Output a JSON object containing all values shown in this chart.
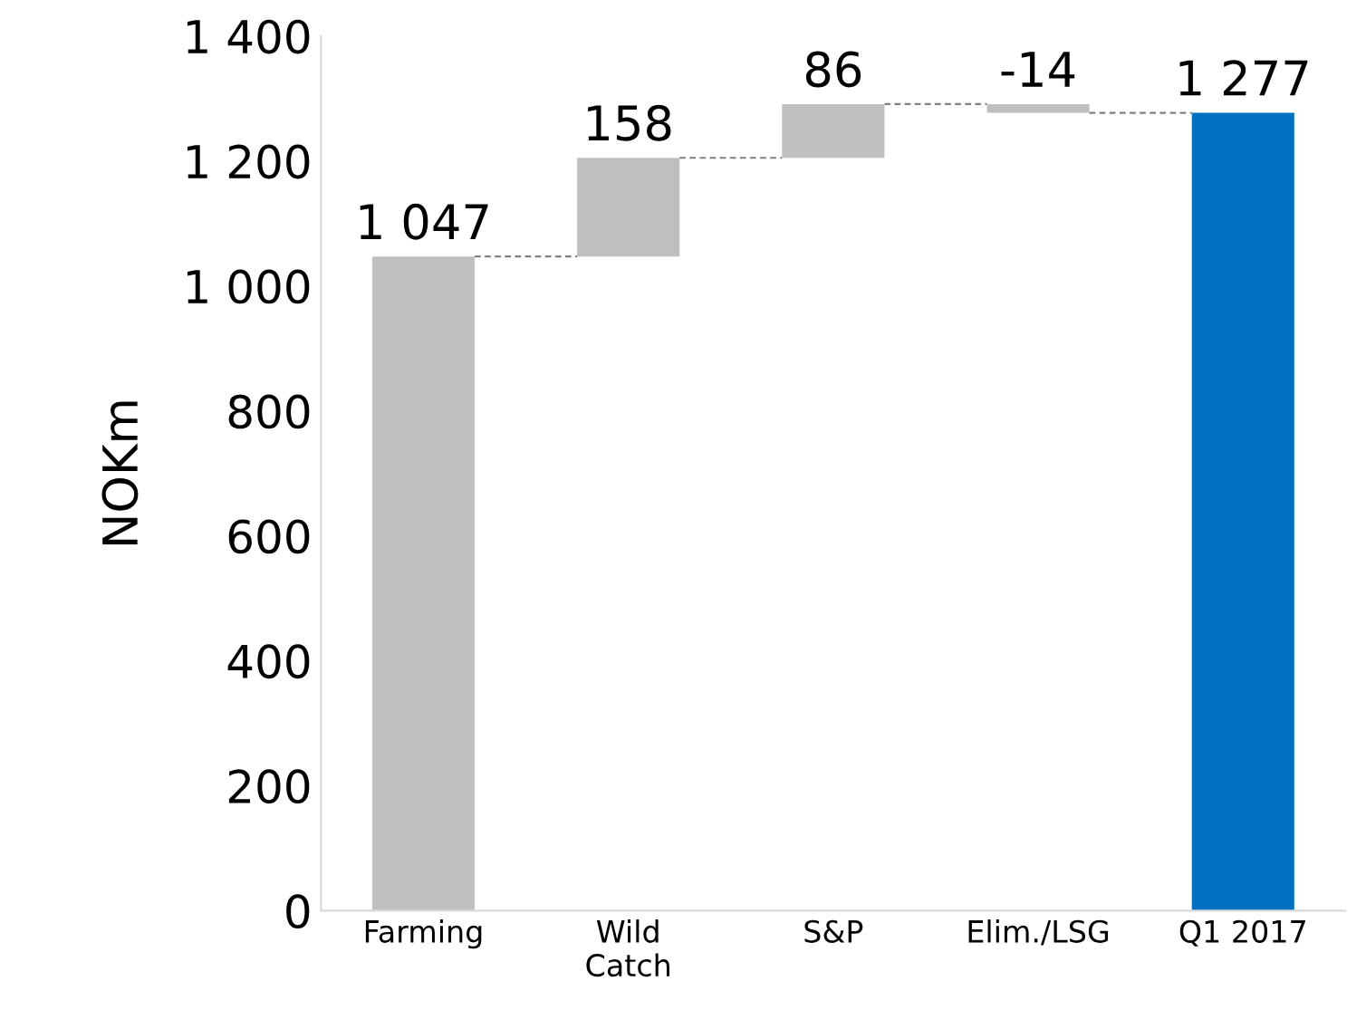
{
  "chart_data": {
    "type": "bar",
    "ylabel": "NOKm",
    "categories": [
      "Farming",
      "Wild\nCatch",
      "S&P",
      "Elim./LSG",
      "Q1 2017"
    ],
    "values": [
      1047,
      158,
      86,
      -14,
      1277
    ],
    "base": [
      0,
      1047,
      1205,
      1291,
      0
    ],
    "colors": [
      "#bfbfbf",
      "#bfbfbf",
      "#bfbfbf",
      "#bfbfbf",
      "#0070c0"
    ],
    "value_labels": [
      "1 047",
      "158",
      "86",
      "-14",
      "1 277"
    ],
    "ylim": [
      0,
      1400
    ],
    "yticks": [
      0,
      200,
      400,
      600,
      800,
      {
        "value": 1000,
        "label": "1 000"
      },
      {
        "value": 1200,
        "label": "1 200"
      },
      {
        "value": 1400,
        "label": "1 400"
      }
    ],
    "grid": false,
    "legend": false
  }
}
